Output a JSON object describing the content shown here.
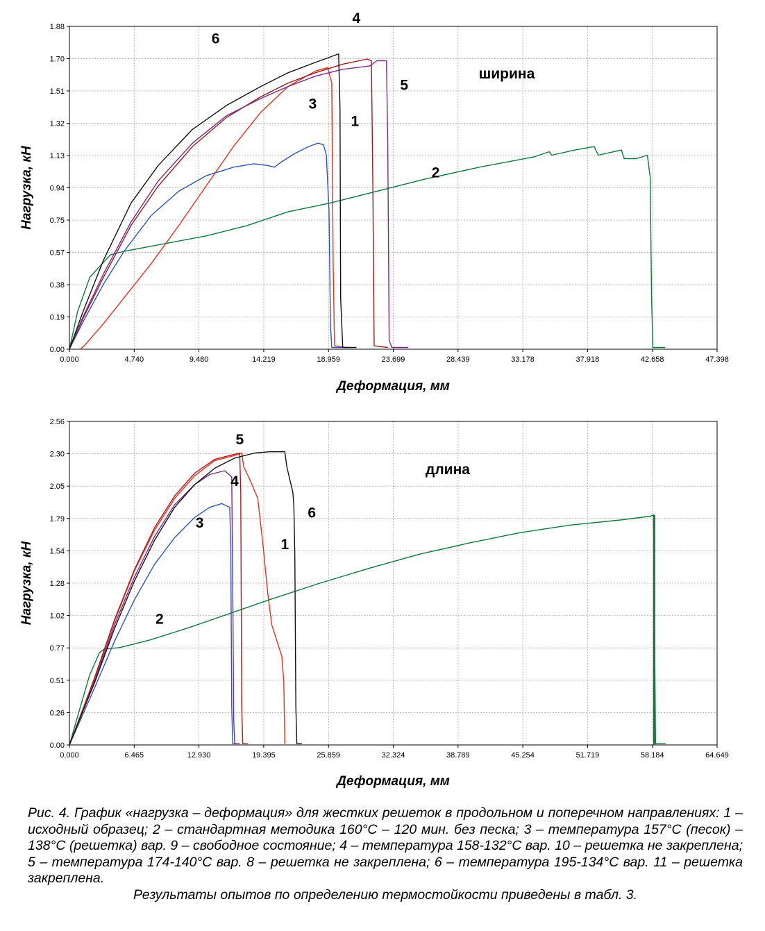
{
  "chart_data": [
    {
      "type": "line",
      "title": "",
      "annotation": "ширина",
      "xlabel": "Деформация, мм",
      "ylabel": "Нагрузка, кН",
      "xlim": [
        0,
        47.398
      ],
      "ylim": [
        0,
        1.88
      ],
      "x_ticks": [
        "0.000",
        "4.740",
        "9.480",
        "14.219",
        "18.959",
        "23.699",
        "28.439",
        "33.178",
        "37.918",
        "42.658",
        "47.398"
      ],
      "y_ticks": [
        "0.00",
        "0.19",
        "0.38",
        "0.57",
        "0.75",
        "0.94",
        "1.13",
        "1.32",
        "1.51",
        "1.70",
        "1.88"
      ],
      "grid": true,
      "series": [
        {
          "name": "1",
          "color": "#e8311c",
          "points": [
            [
              0.8,
              0
            ],
            [
              1.2,
              0.03
            ],
            [
              2.5,
              0.15
            ],
            [
              4,
              0.3
            ],
            [
              6,
              0.5
            ],
            [
              8,
              0.72
            ],
            [
              10,
              0.95
            ],
            [
              12,
              1.18
            ],
            [
              14,
              1.38
            ],
            [
              16,
              1.53
            ],
            [
              18,
              1.62
            ],
            [
              18.9,
              1.64
            ],
            [
              19.2,
              1.55
            ],
            [
              19.3,
              0.5
            ],
            [
              19.4,
              0.02
            ],
            [
              20.2,
              0.01
            ]
          ]
        },
        {
          "name": "2",
          "color": "#0d7a3a",
          "points": [
            [
              0,
              0
            ],
            [
              0.6,
              0.22
            ],
            [
              1.5,
              0.42
            ],
            [
              3,
              0.55
            ],
            [
              4,
              0.57
            ],
            [
              6,
              0.6
            ],
            [
              10,
              0.66
            ],
            [
              13,
              0.72
            ],
            [
              16,
              0.8
            ],
            [
              19,
              0.85
            ],
            [
              22,
              0.91
            ],
            [
              26,
              0.99
            ],
            [
              30,
              1.06
            ],
            [
              34,
              1.12
            ],
            [
              35.1,
              1.15
            ],
            [
              35.3,
              1.13
            ],
            [
              37,
              1.16
            ],
            [
              38.4,
              1.18
            ],
            [
              38.7,
              1.13
            ],
            [
              40.4,
              1.16
            ],
            [
              40.6,
              1.11
            ],
            [
              41.5,
              1.11
            ],
            [
              42.3,
              1.13
            ],
            [
              42.5,
              1.0
            ],
            [
              42.6,
              0.3
            ],
            [
              42.7,
              0.01
            ],
            [
              43.6,
              0.01
            ]
          ]
        },
        {
          "name": "3",
          "color": "#2b54c8",
          "points": [
            [
              0,
              0
            ],
            [
              1,
              0.16
            ],
            [
              2.5,
              0.38
            ],
            [
              4,
              0.57
            ],
            [
              6,
              0.78
            ],
            [
              8,
              0.92
            ],
            [
              10,
              1.01
            ],
            [
              12,
              1.06
            ],
            [
              13.5,
              1.08
            ],
            [
              14.5,
              1.07
            ],
            [
              15,
              1.06
            ],
            [
              15.5,
              1.09
            ],
            [
              16.5,
              1.14
            ],
            [
              17.5,
              1.18
            ],
            [
              18.2,
              1.2
            ],
            [
              18.6,
              1.19
            ],
            [
              18.8,
              1.13
            ],
            [
              19,
              0.8
            ],
            [
              19.1,
              0.15
            ],
            [
              19.2,
              0.01
            ],
            [
              20.5,
              0.01
            ]
          ]
        },
        {
          "name": "4",
          "color": "#9a1a1a",
          "points": [
            [
              0,
              0
            ],
            [
              1,
              0.18
            ],
            [
              2.5,
              0.42
            ],
            [
              4.5,
              0.72
            ],
            [
              6.5,
              0.95
            ],
            [
              9,
              1.18
            ],
            [
              11.5,
              1.35
            ],
            [
              14,
              1.47
            ],
            [
              16,
              1.55
            ],
            [
              18,
              1.61
            ],
            [
              20,
              1.66
            ],
            [
              21.8,
              1.69
            ],
            [
              22.1,
              1.68
            ],
            [
              22.2,
              1.0
            ],
            [
              22.3,
              0.02
            ],
            [
              23.3,
              0.01
            ]
          ]
        },
        {
          "name": "5",
          "color": "#7a2a8a",
          "points": [
            [
              0,
              0
            ],
            [
              1,
              0.19
            ],
            [
              2.5,
              0.44
            ],
            [
              4.5,
              0.74
            ],
            [
              6.5,
              0.98
            ],
            [
              9,
              1.2
            ],
            [
              11.5,
              1.36
            ],
            [
              14,
              1.46
            ],
            [
              16,
              1.53
            ],
            [
              18,
              1.59
            ],
            [
              20,
              1.63
            ],
            [
              22,
              1.65
            ],
            [
              22.5,
              1.68
            ],
            [
              23.2,
              1.68
            ],
            [
              23.3,
              1.2
            ],
            [
              23.4,
              0.05
            ],
            [
              23.6,
              0.01
            ],
            [
              24.8,
              0.01
            ]
          ]
        },
        {
          "name": "6",
          "color": "#111111",
          "points": [
            [
              0,
              0
            ],
            [
              1,
              0.22
            ],
            [
              2.5,
              0.52
            ],
            [
              4.5,
              0.85
            ],
            [
              6.5,
              1.07
            ],
            [
              9,
              1.28
            ],
            [
              11.5,
              1.42
            ],
            [
              14,
              1.53
            ],
            [
              16,
              1.61
            ],
            [
              18,
              1.67
            ],
            [
              19.7,
              1.72
            ],
            [
              19.8,
              1.4
            ],
            [
              19.85,
              0.3
            ],
            [
              20,
              0.01
            ],
            [
              21,
              0.01
            ]
          ]
        }
      ],
      "labels": [
        {
          "text": "6",
          "x": 10.7,
          "y": 1.78
        },
        {
          "text": "4",
          "x": 21.0,
          "y": 1.9
        },
        {
          "text": "5",
          "x": 24.5,
          "y": 1.51
        },
        {
          "text": "3",
          "x": 17.8,
          "y": 1.4
        },
        {
          "text": "1",
          "x": 20.9,
          "y": 1.3
        },
        {
          "text": "2",
          "x": 26.8,
          "y": 1.0
        }
      ]
    },
    {
      "type": "line",
      "title": "",
      "annotation": "длина",
      "xlabel": "Деформация, мм",
      "ylabel": "Нагрузка, кН",
      "xlim": [
        0,
        64.649
      ],
      "ylim": [
        0,
        2.56
      ],
      "x_ticks": [
        "0.000",
        "6.465",
        "12.930",
        "19.395",
        "25.859",
        "32.324",
        "38.789",
        "45.254",
        "51.719",
        "58.184",
        "64.649"
      ],
      "y_ticks": [
        "0.00",
        "0.26",
        "0.51",
        "0.77",
        "1.02",
        "1.28",
        "1.54",
        "1.79",
        "2.05",
        "2.30",
        "2.56"
      ],
      "grid": true,
      "series": [
        {
          "name": "1",
          "color": "#e8311c",
          "points": [
            [
              0,
              0
            ],
            [
              1,
              0.2
            ],
            [
              2.5,
              0.52
            ],
            [
              4.5,
              0.98
            ],
            [
              6.5,
              1.38
            ],
            [
              8.5,
              1.7
            ],
            [
              10.5,
              1.95
            ],
            [
              12.5,
              2.13
            ],
            [
              14.5,
              2.25
            ],
            [
              16.5,
              2.29
            ],
            [
              17.2,
              2.31
            ],
            [
              17.4,
              2.2
            ],
            [
              18,
              2.1
            ],
            [
              18.8,
              1.95
            ],
            [
              19.3,
              1.6
            ],
            [
              19.8,
              1.2
            ],
            [
              20.2,
              0.95
            ],
            [
              20.8,
              0.8
            ],
            [
              21.2,
              0.7
            ],
            [
              21.4,
              0.5
            ],
            [
              21.5,
              0.01
            ]
          ]
        },
        {
          "name": "2",
          "color": "#0d7a3a",
          "points": [
            [
              0,
              0
            ],
            [
              0.8,
              0.22
            ],
            [
              2,
              0.55
            ],
            [
              3,
              0.73
            ],
            [
              3.5,
              0.76
            ],
            [
              5,
              0.77
            ],
            [
              8,
              0.83
            ],
            [
              12,
              0.93
            ],
            [
              16,
              1.04
            ],
            [
              20,
              1.15
            ],
            [
              25,
              1.28
            ],
            [
              30,
              1.4
            ],
            [
              35,
              1.51
            ],
            [
              40,
              1.6
            ],
            [
              45,
              1.68
            ],
            [
              50,
              1.74
            ],
            [
              55,
              1.78
            ],
            [
              58,
              1.81
            ],
            [
              58.3,
              1.82
            ],
            [
              58.4,
              1.0
            ],
            [
              58.5,
              0.01
            ],
            [
              59.5,
              0.01
            ]
          ]
        },
        {
          "name": "3",
          "color": "#2b54c8",
          "points": [
            [
              0,
              0
            ],
            [
              1,
              0.18
            ],
            [
              2.5,
              0.45
            ],
            [
              4.5,
              0.82
            ],
            [
              6.5,
              1.15
            ],
            [
              8.5,
              1.43
            ],
            [
              10.5,
              1.64
            ],
            [
              12.5,
              1.8
            ],
            [
              14,
              1.88
            ],
            [
              15.2,
              1.91
            ],
            [
              16,
              1.88
            ],
            [
              16.1,
              1.6
            ],
            [
              16.2,
              0.3
            ],
            [
              16.3,
              0.01
            ],
            [
              16.8,
              0.01
            ]
          ]
        },
        {
          "name": "4",
          "color": "#7a2a8a",
          "points": [
            [
              0,
              0
            ],
            [
              1,
              0.2
            ],
            [
              2.5,
              0.5
            ],
            [
              4.5,
              0.95
            ],
            [
              6.5,
              1.33
            ],
            [
              8.5,
              1.65
            ],
            [
              10.5,
              1.9
            ],
            [
              12.5,
              2.06
            ],
            [
              14,
              2.14
            ],
            [
              15.5,
              2.17
            ],
            [
              16.2,
              2.12
            ],
            [
              16.3,
              1.3
            ],
            [
              16.4,
              0.2
            ],
            [
              16.5,
              0.01
            ],
            [
              17,
              0.01
            ]
          ]
        },
        {
          "name": "5",
          "color": "#b01a1a",
          "points": [
            [
              0,
              0
            ],
            [
              1,
              0.21
            ],
            [
              2.5,
              0.53
            ],
            [
              4.5,
              0.99
            ],
            [
              6.5,
              1.39
            ],
            [
              8.5,
              1.72
            ],
            [
              10.5,
              1.97
            ],
            [
              12.5,
              2.15
            ],
            [
              14.5,
              2.26
            ],
            [
              16.5,
              2.3
            ],
            [
              17,
              2.31
            ],
            [
              17.1,
              2.0
            ],
            [
              17.2,
              0.3
            ],
            [
              17.3,
              0.01
            ],
            [
              17.8,
              0.01
            ]
          ]
        },
        {
          "name": "6",
          "color": "#111111",
          "points": [
            [
              0,
              0
            ],
            [
              1,
              0.2
            ],
            [
              2.5,
              0.49
            ],
            [
              4.5,
              0.92
            ],
            [
              6.5,
              1.3
            ],
            [
              8.5,
              1.62
            ],
            [
              10.5,
              1.88
            ],
            [
              12.5,
              2.06
            ],
            [
              14.5,
              2.19
            ],
            [
              16.5,
              2.27
            ],
            [
              18.5,
              2.31
            ],
            [
              20,
              2.32
            ],
            [
              21.5,
              2.32
            ],
            [
              21.7,
              2.2
            ],
            [
              22,
              2.1
            ],
            [
              22.3,
              2.0
            ],
            [
              22.4,
              1.9
            ],
            [
              22.5,
              1.5
            ],
            [
              22.6,
              0.3
            ],
            [
              22.7,
              0.01
            ],
            [
              23.2,
              0.01
            ]
          ]
        }
      ],
      "labels": [
        {
          "text": "5",
          "x": 17.0,
          "y": 2.38
        },
        {
          "text": "4",
          "x": 16.5,
          "y": 2.05
        },
        {
          "text": "6",
          "x": 24.2,
          "y": 1.8
        },
        {
          "text": "3",
          "x": 13.0,
          "y": 1.72
        },
        {
          "text": "1",
          "x": 21.5,
          "y": 1.55
        },
        {
          "text": "2",
          "x": 9.0,
          "y": 0.96
        }
      ]
    }
  ],
  "caption": {
    "main": "Рис. 4. График «нагрузка – деформация» для жестких решеток в продольном и поперечном направлениях: 1 – исходный образец; 2 – стандартная методика 160°С – 120 мин. без песка; 3 – температура 157°С (песок) – 138°С (решетка) вар. 9 – свободное состояние; 4 – температура 158-132°С вар. 10 – решетка не закреплена; 5 – температура 174-140°С вар. 8 – решетка не закреплена; 6 – температура 195-134°С вар. 11 – решетка закреплена.",
    "last": "Результаты опытов по определению термостойкости приведены в табл. 3."
  }
}
